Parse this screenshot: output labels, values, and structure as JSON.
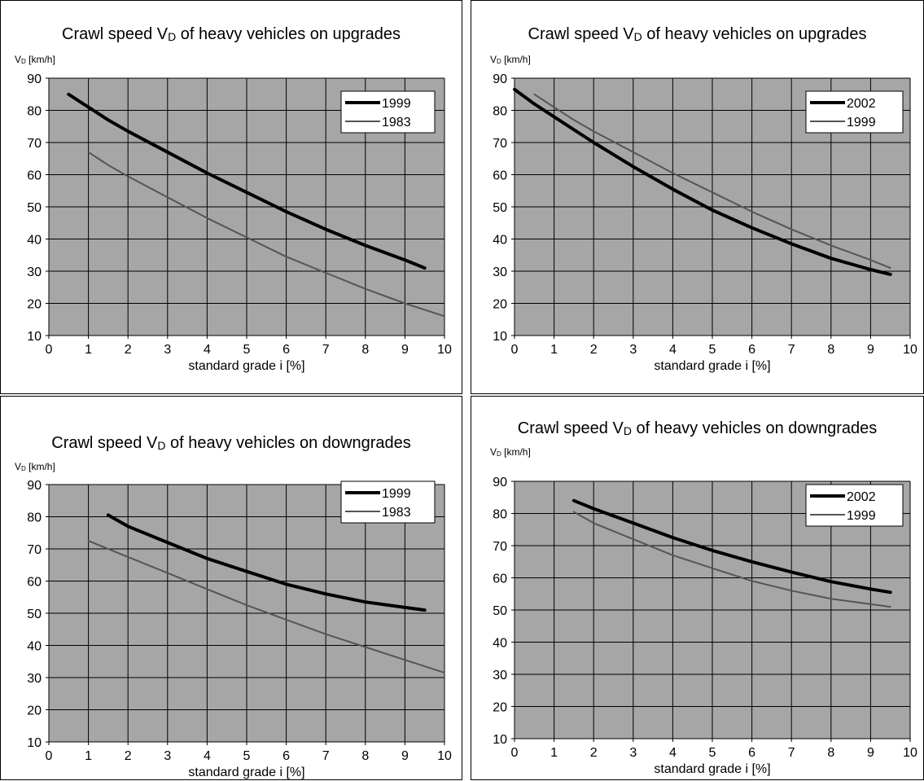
{
  "chart_data": [
    {
      "type": "line",
      "title_main": "Crawl speed V",
      "title_sub": "D",
      "title_rest": " of heavy vehicles on upgrades",
      "ylabel_main": "V",
      "ylabel_sub": "D",
      "ylabel_rest": " [km/h]",
      "xlabel": "standard grade i [%]",
      "xlim": [
        0,
        10
      ],
      "ylim": [
        10,
        90
      ],
      "xticks": [
        0,
        1,
        2,
        3,
        4,
        5,
        6,
        7,
        8,
        9,
        10
      ],
      "yticks": [
        10,
        20,
        30,
        40,
        50,
        60,
        70,
        80,
        90
      ],
      "grid": true,
      "legend": "top-right",
      "series": [
        {
          "name": "1999",
          "x": [
            0.5,
            1,
            1.5,
            2,
            3,
            4,
            5,
            6,
            7,
            8,
            9,
            9.5
          ],
          "y": [
            85,
            81,
            77,
            73.5,
            67,
            60.5,
            54.5,
            48.5,
            43,
            38,
            33.5,
            31
          ],
          "color": "#000000",
          "weight": "heavy"
        },
        {
          "name": "1983",
          "x": [
            1,
            1.5,
            2,
            3,
            4,
            5,
            6,
            7,
            8,
            9,
            10
          ],
          "y": [
            67,
            63,
            59.5,
            53,
            46.5,
            40.5,
            34.5,
            29.5,
            24.5,
            20,
            16
          ],
          "color": "#555555",
          "weight": "light"
        }
      ]
    },
    {
      "type": "line",
      "title_main": "Crawl speed V",
      "title_sub": "D",
      "title_rest": " of heavy vehicles on upgrades",
      "ylabel_main": "V",
      "ylabel_sub": "D",
      "ylabel_rest": " [km/h]",
      "xlabel": "standard grade i [%]",
      "xlim": [
        0,
        10
      ],
      "ylim": [
        10,
        90
      ],
      "xticks": [
        0,
        1,
        2,
        3,
        4,
        5,
        6,
        7,
        8,
        9,
        10
      ],
      "yticks": [
        10,
        20,
        30,
        40,
        50,
        60,
        70,
        80,
        90
      ],
      "grid": true,
      "legend": "top-right",
      "series": [
        {
          "name": "2002",
          "x": [
            0,
            0.5,
            1,
            2,
            3,
            4,
            5,
            6,
            7,
            8,
            9,
            9.5
          ],
          "y": [
            86.5,
            82,
            78,
            70,
            62.5,
            55.5,
            49,
            43.5,
            38.5,
            34,
            30.5,
            29
          ],
          "color": "#000000",
          "weight": "heavy"
        },
        {
          "name": "1999",
          "x": [
            0.5,
            1,
            1.5,
            2,
            3,
            4,
            5,
            6,
            7,
            8,
            9,
            9.5
          ],
          "y": [
            85,
            81,
            77,
            73.5,
            67,
            60.5,
            54.5,
            48.5,
            43,
            38,
            33.5,
            31
          ],
          "color": "#555555",
          "weight": "light"
        }
      ]
    },
    {
      "type": "line",
      "title_main": "Crawl speed V",
      "title_sub": "D",
      "title_rest": " of heavy vehicles on downgrades",
      "ylabel_main": "V",
      "ylabel_sub": "D",
      "ylabel_rest": " [km/h]",
      "xlabel": "standard grade i [%]",
      "xlim": [
        0,
        10
      ],
      "ylim": [
        10,
        90
      ],
      "xticks": [
        0,
        1,
        2,
        3,
        4,
        5,
        6,
        7,
        8,
        9,
        10
      ],
      "yticks": [
        10,
        20,
        30,
        40,
        50,
        60,
        70,
        80,
        90
      ],
      "grid": true,
      "legend": "top-right",
      "series": [
        {
          "name": "1999",
          "x": [
            1.5,
            2,
            3,
            4,
            5,
            6,
            7,
            8,
            9,
            9.5
          ],
          "y": [
            80.5,
            77,
            72,
            67,
            63,
            59,
            56,
            53.5,
            51.8,
            51
          ],
          "color": "#000000",
          "weight": "heavy"
        },
        {
          "name": "1983",
          "x": [
            1,
            2,
            3,
            4,
            5,
            6,
            7,
            8,
            9,
            10
          ],
          "y": [
            72.5,
            67.5,
            62.5,
            57.5,
            52.5,
            48,
            43.5,
            39.5,
            35.5,
            31.5
          ],
          "color": "#555555",
          "weight": "light"
        }
      ]
    },
    {
      "type": "line",
      "title_main": "Crawl speed V",
      "title_sub": "D",
      "title_rest": " of heavy vehicles on downgrades",
      "ylabel_main": "V",
      "ylabel_sub": "D",
      "ylabel_rest": " [km/h]",
      "xlabel": "standard grade i [%]",
      "xlim": [
        0,
        10
      ],
      "ylim": [
        10,
        90
      ],
      "xticks": [
        0,
        1,
        2,
        3,
        4,
        5,
        6,
        7,
        8,
        9,
        10
      ],
      "yticks": [
        10,
        20,
        30,
        40,
        50,
        60,
        70,
        80,
        90
      ],
      "grid": true,
      "legend": "top-right",
      "series": [
        {
          "name": "2002",
          "x": [
            1.5,
            2,
            3,
            4,
            5,
            6,
            7,
            8,
            9,
            9.5
          ],
          "y": [
            84,
            81.5,
            77,
            72.5,
            68.5,
            65,
            61.8,
            58.8,
            56.5,
            55.5
          ],
          "color": "#000000",
          "weight": "heavy"
        },
        {
          "name": "1999",
          "x": [
            1.5,
            2,
            3,
            4,
            5,
            6,
            7,
            8,
            9,
            9.5
          ],
          "y": [
            80.5,
            77,
            72,
            67,
            63,
            59,
            56,
            53.5,
            51.8,
            51
          ],
          "color": "#555555",
          "weight": "light"
        }
      ]
    }
  ]
}
